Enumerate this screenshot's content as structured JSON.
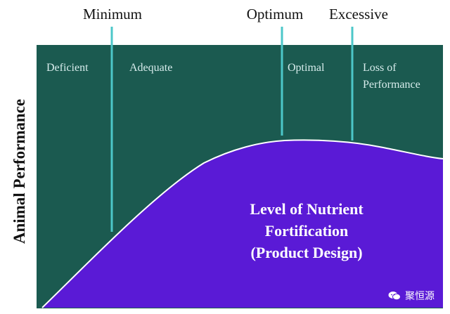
{
  "markers": [
    {
      "id": "minimum",
      "label": "Minimum"
    },
    {
      "id": "optimum",
      "label": "Optimum"
    },
    {
      "id": "excessive",
      "label": "Excessive"
    }
  ],
  "zones": [
    {
      "id": "deficient",
      "lines": [
        "Deficient"
      ]
    },
    {
      "id": "adequate",
      "lines": [
        "Adequate"
      ]
    },
    {
      "id": "optimal",
      "lines": [
        "Optimal"
      ]
    },
    {
      "id": "loss",
      "lines": [
        "Loss of",
        "Performance"
      ]
    }
  ],
  "y_axis_label": "Animal Performance",
  "area_label": [
    "Level of Nutrient",
    "Fortification",
    "(Product Design)"
  ],
  "watermark": "聚恒源",
  "colors": {
    "plot_background": "#1b5a50",
    "curve_fill": "#5a1ad6",
    "curve_stroke": "#ffffff",
    "marker_line": "#4cc7c9",
    "zone_text": "#d7ecec"
  },
  "icons": {
    "watermark": "wechat-icon"
  }
}
